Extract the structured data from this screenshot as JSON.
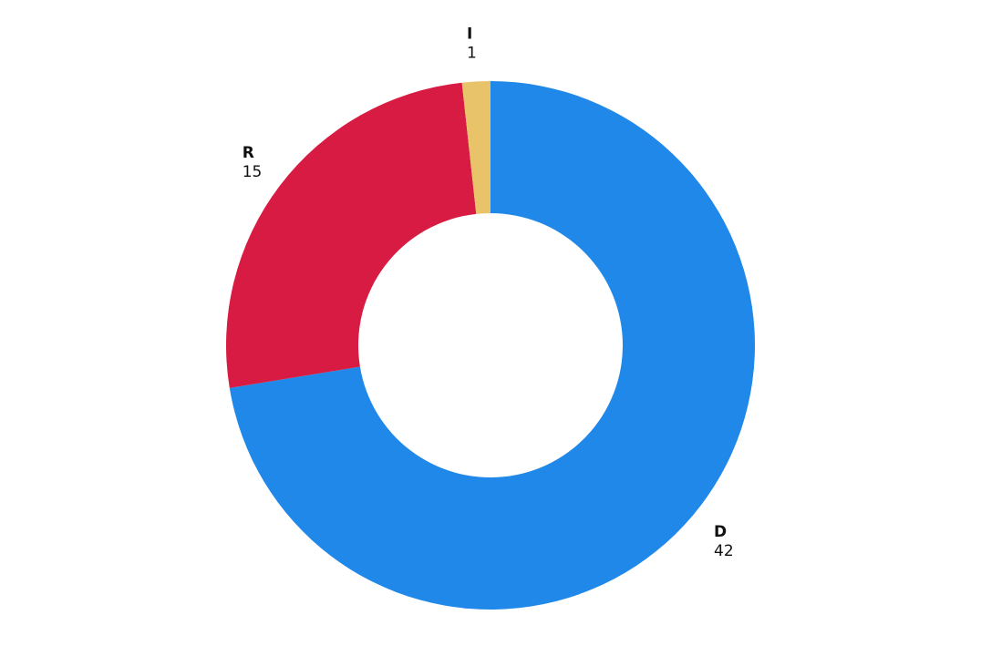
{
  "chart_data": {
    "type": "donut",
    "categories": [
      "D",
      "R",
      "I"
    ],
    "values": [
      42,
      15,
      1
    ],
    "colors": [
      "#2088e8",
      "#d81b42",
      "#e8c36a"
    ]
  }
}
